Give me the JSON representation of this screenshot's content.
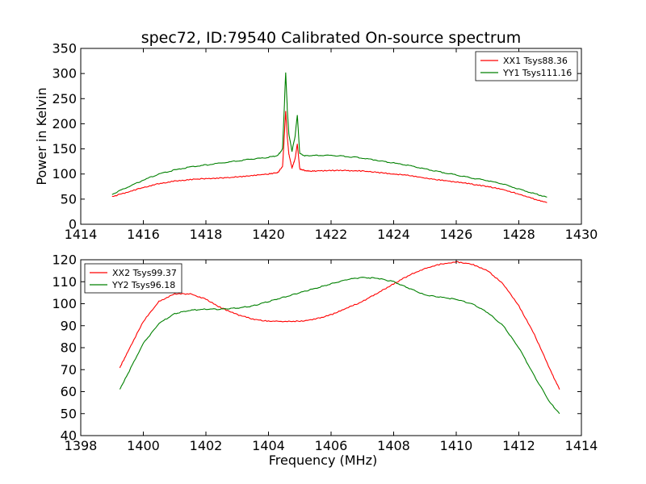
{
  "figure_title": "spec72, ID:79540 Calibrated On-source spectrum",
  "colors": {
    "xx": "#ff0000",
    "yy": "#008000",
    "axes": "#000000",
    "background": "#ffffff"
  },
  "chart_data": [
    {
      "type": "line",
      "title": "spec72, ID:79540 Calibrated On-source spectrum",
      "xlabel": "",
      "ylabel": "Power in Kelvin",
      "xlim": [
        1414,
        1430
      ],
      "ylim": [
        0,
        350
      ],
      "xticks": [
        "1414",
        "1416",
        "1418",
        "1420",
        "1422",
        "1424",
        "1426",
        "1428",
        "1430"
      ],
      "yticks": [
        "0",
        "50",
        "100",
        "150",
        "200",
        "250",
        "300",
        "350"
      ],
      "grid": false,
      "legend_position": "top-right",
      "series": [
        {
          "name": "XX1 Tsys88.36",
          "color": "#ff0000",
          "x": [
            1415.0,
            1415.5,
            1416.0,
            1416.5,
            1417.0,
            1417.5,
            1418.0,
            1418.5,
            1419.0,
            1419.5,
            1420.0,
            1420.3,
            1420.45,
            1420.55,
            1420.6,
            1420.65,
            1420.75,
            1420.85,
            1420.92,
            1421.0,
            1421.2,
            1421.5,
            1422.0,
            1422.5,
            1423.0,
            1423.5,
            1424.0,
            1424.5,
            1425.0,
            1425.5,
            1426.0,
            1426.5,
            1427.0,
            1427.5,
            1428.0,
            1428.5,
            1428.9
          ],
          "y": [
            55,
            64,
            73,
            81,
            86,
            89,
            91,
            92,
            94,
            97,
            100,
            103,
            115,
            225,
            175,
            140,
            112,
            130,
            160,
            110,
            106,
            106,
            107,
            107,
            106,
            103,
            100,
            97,
            92,
            88,
            84,
            80,
            75,
            69,
            60,
            50,
            43
          ]
        },
        {
          "name": "YY1 Tsys111.16",
          "color": "#008000",
          "x": [
            1415.0,
            1415.5,
            1416.0,
            1416.5,
            1417.0,
            1417.5,
            1418.0,
            1418.5,
            1419.0,
            1419.5,
            1420.0,
            1420.3,
            1420.45,
            1420.55,
            1420.6,
            1420.65,
            1420.75,
            1420.85,
            1420.92,
            1421.0,
            1421.2,
            1421.5,
            1422.0,
            1422.5,
            1423.0,
            1423.5,
            1424.0,
            1424.5,
            1425.0,
            1425.5,
            1426.0,
            1426.5,
            1427.0,
            1427.5,
            1428.0,
            1428.5,
            1428.9
          ],
          "y": [
            60,
            74,
            88,
            100,
            108,
            114,
            118,
            122,
            126,
            130,
            133,
            137,
            150,
            302,
            230,
            180,
            145,
            175,
            218,
            140,
            136,
            137,
            137,
            135,
            132,
            127,
            122,
            117,
            110,
            104,
            98,
            92,
            87,
            80,
            70,
            61,
            54
          ]
        }
      ]
    },
    {
      "type": "line",
      "title": "",
      "xlabel": "Frequency (MHz)",
      "ylabel": "",
      "xlim": [
        1398,
        1414
      ],
      "ylim": [
        40,
        120
      ],
      "xticks": [
        "1398",
        "1400",
        "1402",
        "1404",
        "1406",
        "1408",
        "1410",
        "1412",
        "1414"
      ],
      "yticks": [
        "40",
        "50",
        "60",
        "70",
        "80",
        "90",
        "100",
        "110",
        "120"
      ],
      "grid": false,
      "legend_position": "top-left",
      "series": [
        {
          "name": "XX2 Tsys99.37",
          "color": "#ff0000",
          "x": [
            1399.25,
            1399.5,
            1400.0,
            1400.5,
            1401.0,
            1401.5,
            1402.0,
            1402.5,
            1403.0,
            1403.5,
            1404.0,
            1404.5,
            1405.0,
            1405.5,
            1406.0,
            1406.5,
            1407.0,
            1407.5,
            1408.0,
            1408.5,
            1409.0,
            1409.5,
            1410.0,
            1410.5,
            1411.0,
            1411.5,
            1412.0,
            1412.5,
            1413.0,
            1413.3
          ],
          "y": [
            71,
            78,
            92,
            101,
            104.5,
            104.5,
            102,
            98,
            95,
            93,
            92,
            92,
            92,
            93,
            95,
            98,
            101,
            105,
            109,
            113,
            116,
            118,
            119,
            118,
            115,
            109,
            99,
            86,
            70,
            61
          ]
        },
        {
          "name": "YY2 Tsys96.18",
          "color": "#008000",
          "x": [
            1399.25,
            1399.5,
            1400.0,
            1400.5,
            1401.0,
            1401.5,
            1402.0,
            1402.5,
            1403.0,
            1403.5,
            1404.0,
            1404.5,
            1405.0,
            1405.5,
            1406.0,
            1406.5,
            1407.0,
            1407.5,
            1408.0,
            1408.5,
            1409.0,
            1409.5,
            1410.0,
            1410.5,
            1411.0,
            1411.5,
            1412.0,
            1412.5,
            1413.0,
            1413.3
          ],
          "y": [
            61,
            68,
            82,
            91,
            95.5,
            97,
            97.5,
            97.5,
            98,
            99,
            101,
            103,
            105,
            107,
            109,
            111,
            112,
            111.5,
            110,
            107,
            104,
            103,
            102,
            100,
            96,
            90,
            80,
            67,
            55,
            50
          ]
        }
      ]
    }
  ]
}
